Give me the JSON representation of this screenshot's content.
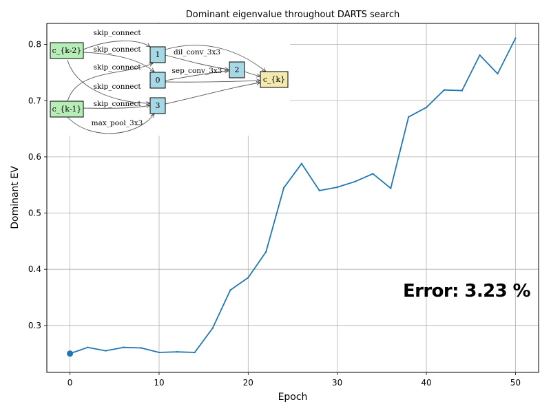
{
  "chart_data": {
    "type": "line",
    "title": "Dominant eigenvalue throughout DARTS search",
    "xlabel": "Epoch",
    "ylabel": "Dominant EV",
    "xlim": [
      -2.6,
      52.6
    ],
    "ylim": [
      0.2165,
      0.8375
    ],
    "xticks": [
      0,
      10,
      20,
      30,
      40,
      50
    ],
    "yticks": [
      0.3,
      0.4,
      0.5,
      0.6,
      0.7,
      0.8
    ],
    "xtick_labels": [
      "0",
      "10",
      "20",
      "30",
      "40",
      "50"
    ],
    "ytick_labels": [
      "0.3",
      "0.4",
      "0.5",
      "0.6",
      "0.7",
      "0.8"
    ],
    "grid": true,
    "series": [
      {
        "color": "#1f77b4",
        "x": [
          0,
          2,
          4,
          6,
          8,
          10,
          12,
          14,
          16,
          18,
          20,
          22,
          24,
          26,
          28,
          30,
          32,
          34,
          36,
          38,
          40,
          42,
          44,
          46,
          48,
          50
        ],
        "values": [
          0.25,
          0.261,
          0.255,
          0.261,
          0.26,
          0.252,
          0.253,
          0.252,
          0.295,
          0.363,
          0.385,
          0.431,
          0.545,
          0.588,
          0.54,
          0.546,
          0.556,
          0.57,
          0.544,
          0.671,
          0.688,
          0.719,
          0.718,
          0.781,
          0.748,
          0.811
        ],
        "marker_at_index": 0
      }
    ],
    "annotation": "Error: 3.23 %"
  },
  "cell_diagram": {
    "nodes": [
      {
        "id": "k2",
        "label": "c_{k-2}",
        "color": "#b7eeb7"
      },
      {
        "id": "k1",
        "label": "c_{k-1}",
        "color": "#b7eeb7"
      },
      {
        "id": "n0",
        "label": "0",
        "color": "#a7d8e6"
      },
      {
        "id": "n1",
        "label": "1",
        "color": "#a7d8e6"
      },
      {
        "id": "n2",
        "label": "2",
        "color": "#a7d8e6"
      },
      {
        "id": "n3",
        "label": "3",
        "color": "#a7d8e6"
      },
      {
        "id": "out",
        "label": "c_{k}",
        "color": "#f4eab0"
      }
    ],
    "edges": [
      {
        "label": "skip_connect"
      },
      {
        "label": "skip_connect"
      },
      {
        "label": "skip_connect"
      },
      {
        "label": "skip_connect"
      },
      {
        "label": "skip_connect"
      },
      {
        "label": "max_pool_3x3"
      },
      {
        "label": "dil_conv_3x3"
      },
      {
        "label": "sep_conv_3x3"
      }
    ]
  }
}
